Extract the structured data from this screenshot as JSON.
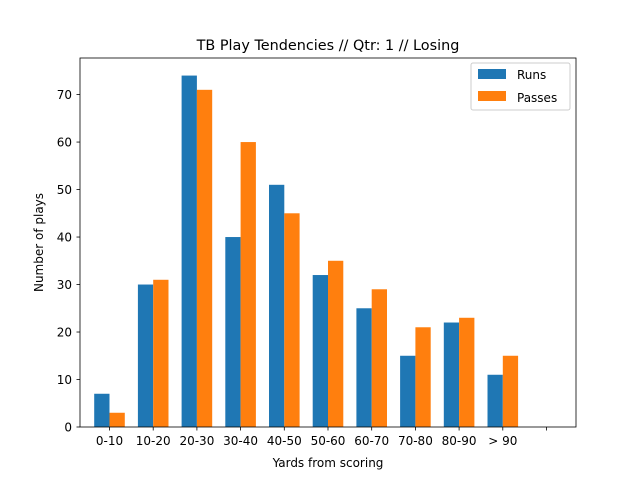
{
  "chart_data": {
    "type": "bar",
    "title": "TB Play Tendencies // Qtr: 1 // Losing",
    "xlabel": "Yards from scoring",
    "ylabel": "Number of plays",
    "categories": [
      "0-10",
      "10-20",
      "20-30",
      "30-40",
      "40-50",
      "50-60",
      "60-70",
      "70-80",
      "80-90",
      "> 90",
      ""
    ],
    "series": [
      {
        "name": "Runs",
        "color": "#1f77b4",
        "values": [
          7,
          30,
          74,
          40,
          51,
          32,
          25,
          15,
          22,
          11,
          0
        ]
      },
      {
        "name": "Passes",
        "color": "#ff7f0e",
        "values": [
          3,
          31,
          71,
          60,
          45,
          35,
          29,
          21,
          23,
          15,
          0
        ]
      }
    ],
    "ylim": [
      0,
      77.7
    ],
    "yticks": [
      0,
      10,
      20,
      30,
      40,
      50,
      60,
      70
    ],
    "legend": "top-right",
    "grid": false
  }
}
